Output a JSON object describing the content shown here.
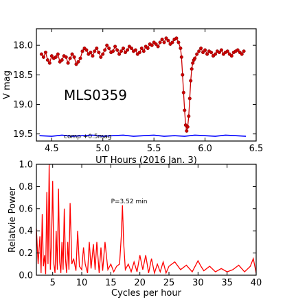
{
  "chart_data": [
    {
      "type": "line",
      "xlabel": "UT Hours (2016 Jan. 3)",
      "ylabel": "V mag",
      "xlim": [
        4.35,
        6.5
      ],
      "ylim": [
        19.62,
        17.72
      ],
      "y_inverted": true,
      "xticks": [
        4.5,
        5.0,
        5.5,
        6.0,
        6.5
      ],
      "xtick_labels": [
        "4.5",
        "5.0",
        "5.5",
        "6.0",
        "6.5"
      ],
      "yticks": [
        18.0,
        18.5,
        19.0,
        19.5
      ],
      "ytick_labels": [
        "18.0",
        "18.5",
        "19.0",
        "19.5"
      ],
      "annotations": [
        "MLS0359",
        "comp +0.5mag"
      ],
      "series": [
        {
          "color": "#cc0000",
          "marker": "circle",
          "x": [
            4.4,
            4.42,
            4.44,
            4.46,
            4.48,
            4.5,
            4.52,
            4.54,
            4.56,
            4.58,
            4.6,
            4.62,
            4.64,
            4.66,
            4.68,
            4.7,
            4.72,
            4.74,
            4.76,
            4.78,
            4.8,
            4.82,
            4.84,
            4.86,
            4.88,
            4.9,
            4.92,
            4.94,
            4.96,
            4.98,
            5.0,
            5.02,
            5.04,
            5.06,
            5.08,
            5.1,
            5.12,
            5.14,
            5.16,
            5.18,
            5.2,
            5.22,
            5.24,
            5.26,
            5.28,
            5.3,
            5.32,
            5.34,
            5.36,
            5.38,
            5.4,
            5.42,
            5.44,
            5.46,
            5.48,
            5.5,
            5.52,
            5.54,
            5.56,
            5.58,
            5.6,
            5.62,
            5.64,
            5.66,
            5.68,
            5.7,
            5.72,
            5.74,
            5.76,
            5.77,
            5.78,
            5.79,
            5.8,
            5.81,
            5.82,
            5.83,
            5.84,
            5.85,
            5.86,
            5.87,
            5.88,
            5.89,
            5.9,
            5.92,
            5.94,
            5.96,
            5.98,
            6.0,
            6.02,
            6.04,
            6.06,
            6.08,
            6.1,
            6.12,
            6.14,
            6.16,
            6.18,
            6.2,
            6.22,
            6.24,
            6.26,
            6.28,
            6.3,
            6.32,
            6.34,
            6.36,
            6.38
          ],
          "y": [
            18.15,
            18.2,
            18.12,
            18.25,
            18.3,
            18.18,
            18.22,
            18.2,
            18.15,
            18.28,
            18.25,
            18.18,
            18.2,
            18.3,
            18.22,
            18.15,
            18.2,
            18.32,
            18.28,
            18.22,
            18.1,
            18.05,
            18.08,
            18.15,
            18.12,
            18.18,
            18.1,
            18.05,
            18.12,
            18.2,
            18.15,
            18.08,
            18.0,
            18.05,
            18.12,
            18.1,
            18.02,
            18.08,
            18.15,
            18.1,
            18.05,
            18.12,
            18.08,
            18.02,
            18.05,
            18.1,
            18.08,
            18.15,
            18.12,
            18.05,
            18.1,
            18.02,
            18.05,
            17.98,
            18.0,
            17.95,
            17.98,
            18.02,
            17.95,
            17.9,
            17.95,
            17.88,
            17.92,
            17.98,
            17.95,
            17.9,
            17.88,
            17.95,
            18.05,
            18.2,
            18.5,
            18.8,
            19.1,
            19.35,
            19.45,
            19.38,
            19.2,
            18.9,
            18.6,
            18.4,
            18.3,
            18.25,
            18.22,
            18.15,
            18.1,
            18.05,
            18.12,
            18.08,
            18.15,
            18.1,
            18.12,
            18.18,
            18.15,
            18.1,
            18.12,
            18.08,
            18.15,
            18.12,
            18.1,
            18.15,
            18.18,
            18.12,
            18.1,
            18.08,
            18.12,
            18.15,
            18.1
          ]
        },
        {
          "color": "#0000ff",
          "marker": "none",
          "x": [
            4.38,
            4.5,
            4.6,
            4.7,
            4.8,
            4.9,
            5.0,
            5.1,
            5.2,
            5.3,
            5.4,
            5.5,
            5.6,
            5.7,
            5.8,
            5.9,
            6.0,
            6.1,
            6.2,
            6.3,
            6.4
          ],
          "y": [
            19.53,
            19.54,
            19.52,
            19.54,
            19.53,
            19.52,
            19.54,
            19.53,
            19.52,
            19.54,
            19.53,
            19.52,
            19.54,
            19.53,
            19.54,
            19.52,
            19.53,
            19.54,
            19.52,
            19.53,
            19.54
          ]
        }
      ]
    },
    {
      "type": "line",
      "xlabel": "Cycles per hour",
      "ylabel": "Relatvie Power",
      "xlim": [
        2.2,
        40
      ],
      "ylim": [
        0.0,
        1.0
      ],
      "xticks": [
        5,
        10,
        15,
        20,
        25,
        30,
        35,
        40
      ],
      "xtick_labels": [
        "5",
        "10",
        "15",
        "20",
        "25",
        "30",
        "35",
        "40"
      ],
      "yticks": [
        0.0,
        0.2,
        0.4,
        0.6,
        0.8,
        1.0
      ],
      "ytick_labels": [
        "0.0",
        "0.2",
        "0.4",
        "0.6",
        "0.8",
        "1.0"
      ],
      "annotations": [
        "P=3.52 min"
      ],
      "series": [
        {
          "color": "#ff0000",
          "x": [
            2.2,
            2.5,
            2.8,
            3.0,
            3.2,
            3.4,
            3.6,
            3.8,
            4.0,
            4.2,
            4.4,
            4.6,
            4.8,
            5.0,
            5.2,
            5.4,
            5.6,
            5.8,
            6.0,
            6.2,
            6.4,
            6.6,
            6.8,
            7.0,
            7.2,
            7.4,
            7.6,
            7.8,
            8.0,
            8.3,
            8.6,
            9.0,
            9.3,
            9.6,
            10.0,
            10.3,
            10.6,
            11.0,
            11.3,
            11.6,
            12.0,
            12.3,
            12.6,
            13.0,
            13.3,
            13.6,
            14.0,
            14.5,
            15.0,
            15.5,
            16.0,
            16.5,
            16.8,
            17.0,
            17.2,
            17.5,
            18.0,
            18.5,
            19.0,
            19.5,
            20.0,
            20.5,
            21.0,
            21.5,
            22.0,
            22.5,
            23.0,
            23.5,
            24.0,
            24.5,
            25.0,
            26.0,
            27.0,
            28.0,
            29.0,
            30.0,
            30.5,
            31.0,
            32.0,
            33.0,
            34.0,
            35.0,
            36.0,
            37.0,
            38.0,
            39.0,
            39.5,
            40.0
          ],
          "y": [
            0.42,
            0.1,
            0.35,
            0.02,
            0.55,
            0.08,
            0.18,
            0.01,
            0.75,
            0.1,
            1.0,
            0.05,
            0.3,
            0.85,
            0.1,
            0.02,
            0.4,
            0.05,
            0.78,
            0.12,
            0.02,
            0.3,
            0.05,
            0.6,
            0.15,
            0.02,
            0.3,
            0.05,
            0.65,
            0.1,
            0.15,
            0.04,
            0.4,
            0.08,
            0.05,
            0.25,
            0.1,
            0.02,
            0.3,
            0.06,
            0.28,
            0.05,
            0.3,
            0.02,
            0.25,
            0.04,
            0.3,
            0.05,
            0.1,
            0.03,
            0.08,
            0.1,
            0.35,
            0.63,
            0.3,
            0.05,
            0.1,
            0.03,
            0.12,
            0.03,
            0.18,
            0.05,
            0.18,
            0.02,
            0.15,
            0.02,
            0.1,
            0.03,
            0.12,
            0.02,
            0.08,
            0.12,
            0.05,
            0.09,
            0.03,
            0.13,
            0.08,
            0.04,
            0.08,
            0.03,
            0.06,
            0.03,
            0.05,
            0.09,
            0.03,
            0.08,
            0.15,
            0.02
          ]
        }
      ]
    }
  ]
}
